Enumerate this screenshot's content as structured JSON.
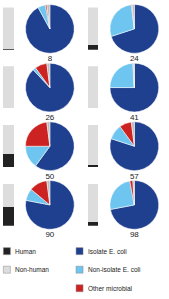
{
  "chart_data": [
    {
      "type": "bar",
      "stacked": true,
      "categories": [
        null
      ],
      "series": [
        {
          "name": "Human",
          "color": "#222222",
          "values": [
            0.02
          ]
        },
        {
          "name": "Non-human",
          "color": "#dddddd",
          "values": [
            0.98
          ]
        }
      ],
      "ylim": [
        0,
        1
      ],
      "tick_labels": false,
      "legend": "bottom"
    },
    {
      "type": "pie",
      "title": "8",
      "categories": [
        "Isolate E. coli",
        "Non-isolate E. coli",
        "Other microbial",
        null
      ],
      "values": [
        0.92,
        0.05,
        0.01,
        0.02
      ],
      "colors": [
        "#1f3f8f",
        "#6ec6f0",
        "#cc2222",
        "#bbbbbb"
      ],
      "legend": "bottom"
    },
    {
      "type": "bar",
      "stacked": true,
      "categories": [
        null
      ],
      "series": [
        {
          "name": "Human",
          "color": "#222222",
          "values": [
            0.12
          ]
        },
        {
          "name": "Non-human",
          "color": "#dddddd",
          "values": [
            0.88
          ]
        }
      ],
      "ylim": [
        0,
        1
      ],
      "tick_labels": false,
      "legend": "bottom"
    },
    {
      "type": "pie",
      "title": "24",
      "categories": [
        "Isolate E. coli",
        "Non-isolate E. coli",
        "Other microbial",
        null
      ],
      "values": [
        0.7,
        0.28,
        0.005,
        0.015
      ],
      "colors": [
        "#1f3f8f",
        "#6ec6f0",
        "#cc2222",
        "#bbbbbb"
      ],
      "legend": "bottom"
    },
    {
      "type": "bar",
      "stacked": true,
      "categories": [
        null
      ],
      "series": [
        {
          "name": "Human",
          "color": "#222222",
          "values": [
            0.02
          ]
        },
        {
          "name": "Non-human",
          "color": "#dddddd",
          "values": [
            0.98
          ]
        }
      ],
      "ylim": [
        0,
        1
      ],
      "tick_labels": false,
      "legend": "bottom"
    },
    {
      "type": "pie",
      "title": "26",
      "categories": [
        "Isolate E. coli",
        "Non-isolate E. coli",
        "Other microbial",
        null
      ],
      "values": [
        0.88,
        0.02,
        0.08,
        0.02
      ],
      "colors": [
        "#1f3f8f",
        "#6ec6f0",
        "#cc2222",
        "#bbbbbb"
      ],
      "legend": "bottom"
    },
    {
      "type": "bar",
      "stacked": true,
      "categories": [
        null
      ],
      "series": [
        {
          "name": "Human",
          "color": "#222222",
          "values": [
            0.02
          ]
        },
        {
          "name": "Non-human",
          "color": "#dddddd",
          "values": [
            0.98
          ]
        }
      ],
      "ylim": [
        0,
        1
      ],
      "tick_labels": false,
      "legend": "bottom"
    },
    {
      "type": "pie",
      "title": "41",
      "categories": [
        "Isolate E. coli",
        "Non-isolate E. coli",
        "Other microbial",
        null
      ],
      "values": [
        0.75,
        0.24,
        0.005,
        0.005
      ],
      "colors": [
        "#1f3f8f",
        "#6ec6f0",
        "#cc2222",
        "#bbbbbb"
      ],
      "legend": "bottom"
    },
    {
      "type": "bar",
      "stacked": true,
      "categories": [
        null
      ],
      "series": [
        {
          "name": "Human",
          "color": "#222222",
          "values": [
            0.3
          ]
        },
        {
          "name": "Non-human",
          "color": "#dddddd",
          "values": [
            0.7
          ]
        }
      ],
      "ylim": [
        0,
        1
      ],
      "tick_labels": false,
      "legend": "bottom"
    },
    {
      "type": "pie",
      "title": "50",
      "categories": [
        "Isolate E. coli",
        "Non-isolate E. coli",
        "Other microbial",
        null
      ],
      "values": [
        0.6,
        0.15,
        0.23,
        0.02
      ],
      "colors": [
        "#1f3f8f",
        "#6ec6f0",
        "#cc2222",
        "#bbbbbb"
      ],
      "legend": "bottom"
    },
    {
      "type": "bar",
      "stacked": true,
      "categories": [
        null
      ],
      "series": [
        {
          "name": "Human",
          "color": "#222222",
          "values": [
            0.05
          ]
        },
        {
          "name": "Non-human",
          "color": "#dddddd",
          "values": [
            0.95
          ]
        }
      ],
      "ylim": [
        0,
        1
      ],
      "tick_labels": false,
      "legend": "bottom"
    },
    {
      "type": "pie",
      "title": "57",
      "categories": [
        "Isolate E. coli",
        "Non-isolate E. coli",
        "Other microbial",
        null
      ],
      "values": [
        0.8,
        0.1,
        0.08,
        0.02
      ],
      "colors": [
        "#1f3f8f",
        "#6ec6f0",
        "#cc2222",
        "#bbbbbb"
      ],
      "legend": "bottom"
    },
    {
      "type": "bar",
      "stacked": true,
      "categories": [
        null
      ],
      "series": [
        {
          "name": "Human",
          "color": "#222222",
          "values": [
            0.45
          ]
        },
        {
          "name": "Non-human",
          "color": "#dddddd",
          "values": [
            0.55
          ]
        }
      ],
      "ylim": [
        0,
        1
      ],
      "tick_labels": false,
      "legend": "bottom"
    },
    {
      "type": "pie",
      "title": "90",
      "categories": [
        "Isolate E. coli",
        "Non-isolate E. coli",
        "Other microbial",
        null
      ],
      "values": [
        0.78,
        0.08,
        0.12,
        0.02
      ],
      "colors": [
        "#1f3f8f",
        "#6ec6f0",
        "#cc2222",
        "#bbbbbb"
      ],
      "legend": "bottom"
    },
    {
      "type": "bar",
      "stacked": true,
      "categories": [
        null
      ],
      "series": [
        {
          "name": "Human",
          "color": "#222222",
          "values": [
            0.08
          ]
        },
        {
          "name": "Non-human",
          "color": "#dddddd",
          "values": [
            0.92
          ]
        }
      ],
      "ylim": [
        0,
        1
      ],
      "tick_labels": false,
      "legend": "bottom"
    },
    {
      "type": "pie",
      "title": "98",
      "categories": [
        "Isolate E. coli",
        "Non-isolate E. coli",
        "Other microbial",
        null
      ],
      "values": [
        0.72,
        0.25,
        0.02,
        0.01
      ],
      "colors": [
        "#1f3f8f",
        "#6ec6f0",
        "#cc2222",
        "#bbbbbb"
      ],
      "legend": "bottom"
    }
  ]
}
